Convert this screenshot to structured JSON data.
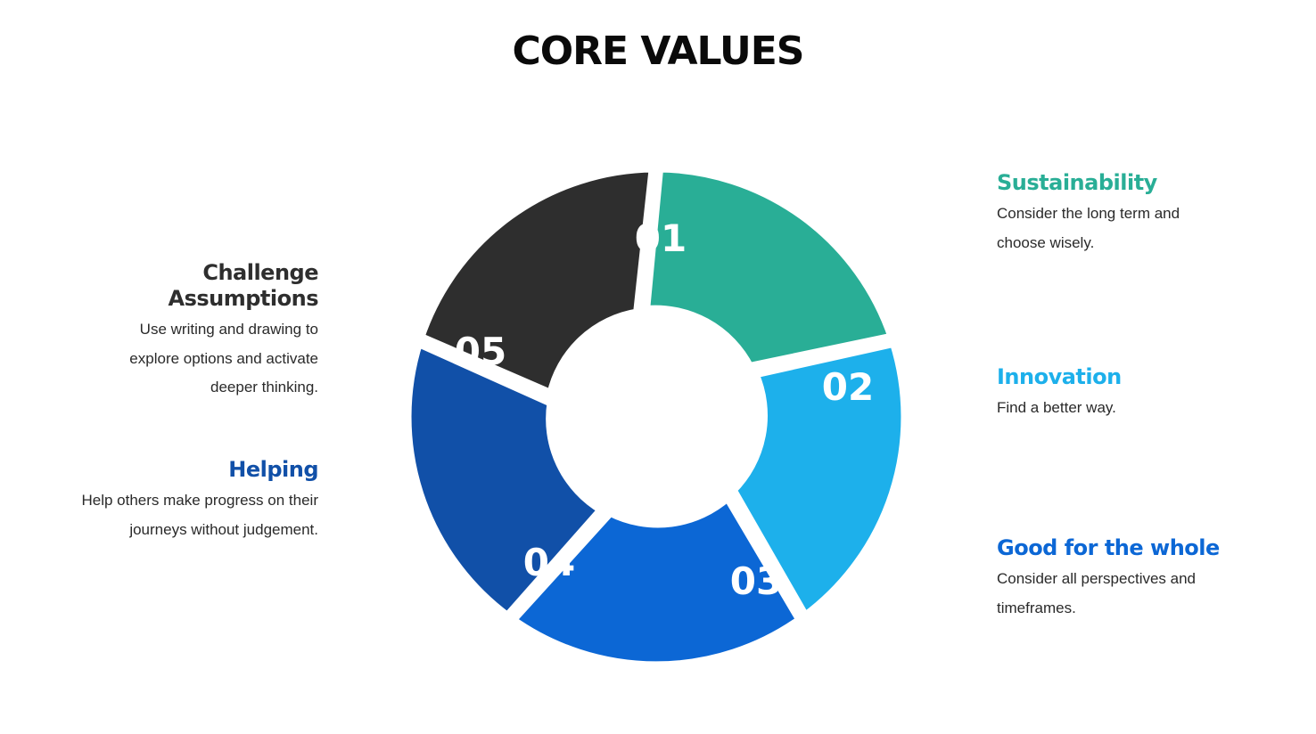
{
  "title": "CORE VALUES",
  "colors": {
    "sustainability": "#29ae96",
    "innovation": "#1db0eb",
    "good_for_the_whole": "#0c67d5",
    "helping": "#1150a8",
    "challenge_assumptions": "#2e2e2e"
  },
  "values": [
    {
      "number": "01",
      "title": "Sustainability",
      "description": "Consider the long term and choose wisely."
    },
    {
      "number": "02",
      "title": "Innovation",
      "description": "Find a better way."
    },
    {
      "number": "03",
      "title": "Good for the whole",
      "description": "Consider all perspectives and timeframes."
    },
    {
      "number": "04",
      "title": "Helping",
      "description": "Help others make progress on their journeys without judgement."
    },
    {
      "number": "05",
      "title": "Challenge Assumptions",
      "description": "Use writing and drawing to explore options and activate deeper thinking."
    }
  ]
}
